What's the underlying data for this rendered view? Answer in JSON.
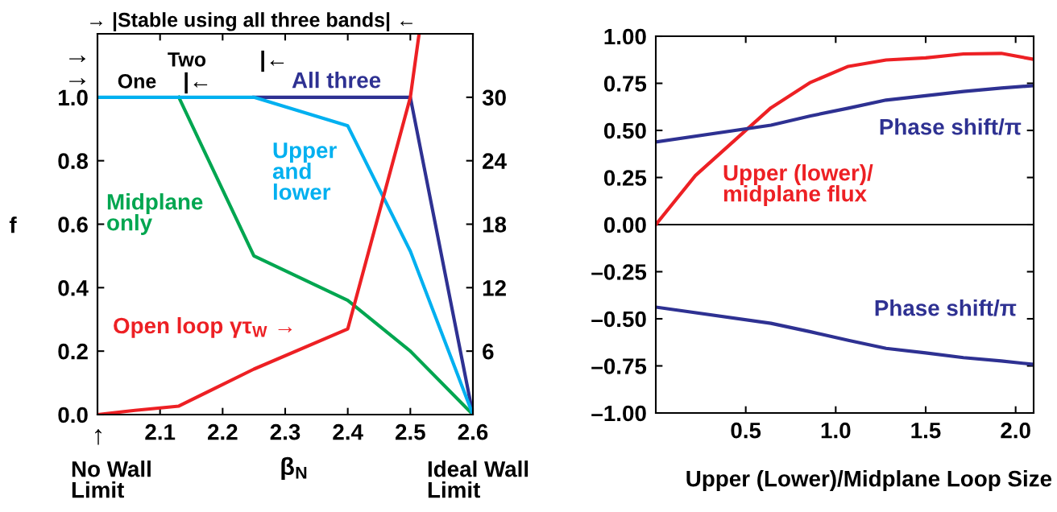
{
  "chart_data": [
    {
      "type": "line",
      "xlabel": "β$_{N}$",
      "ylabel": "f",
      "xlim": [
        2.0,
        2.6
      ],
      "xticks": [
        2.1,
        2.2,
        2.3,
        2.4,
        2.5,
        2.6
      ],
      "ylim": [
        0,
        1.2
      ],
      "yticks": [
        {
          "value": 0,
          "label": "0.0"
        },
        0.2,
        0.4,
        0.6,
        0.8,
        {
          "value": 1,
          "label": "1.0"
        }
      ],
      "y2lim": [
        0,
        36
      ],
      "y2ticks": [
        6,
        12,
        18,
        24,
        30
      ],
      "series": [
        {
          "name": "All three",
          "color": "#2e3192",
          "x": [
            2.25,
            2.5,
            2.6
          ],
          "values": [
            1.0,
            1.0,
            0.0
          ]
        },
        {
          "name": "Midplane\nonly",
          "color": "#00a650",
          "x": [
            2.13,
            2.25,
            2.4,
            2.5,
            2.6
          ],
          "values": [
            1.0,
            0.5,
            0.36,
            0.2,
            0.0
          ]
        },
        {
          "name": "Upper\nand\nlower",
          "color": "#00b0f0",
          "x": [
            2.0,
            2.25,
            2.4,
            2.5,
            2.6
          ],
          "values": [
            1.0,
            1.0,
            0.91,
            0.515,
            0.0
          ]
        },
        {
          "name": "Open loop γτ$_{W}$ →",
          "color": "#ed2024",
          "axis": "y2",
          "x": [
            2.0,
            2.06,
            2.13,
            2.25,
            2.4,
            2.5,
            2.514
          ],
          "values": [
            0,
            0.4,
            0.8,
            4.3,
            8.1,
            30,
            36
          ]
        }
      ],
      "annotations": [
        "→ |Stable using all three bands| ←",
        "→",
        "Two",
        "|←",
        "→",
        "One",
        "|←",
        "↑",
        "No Wall\nLimit",
        "Ideal Wall\nLimit"
      ]
    },
    {
      "type": "line",
      "xlabel": "Upper (Lower)/Midplane Loop Size",
      "xlim": [
        0,
        2.1
      ],
      "xticks": [
        0.5,
        {
          "value": 1,
          "label": "1.0"
        },
        1.5,
        {
          "value": 2,
          "label": "2.0"
        }
      ],
      "ylim": [
        -1,
        1
      ],
      "yticks": [
        {
          "value": -1,
          "label": "–1.00"
        },
        {
          "value": -0.75,
          "label": "–0.75"
        },
        {
          "value": -0.5,
          "label": "–0.50"
        },
        {
          "value": -0.25,
          "label": "–0.25"
        },
        {
          "value": 0,
          "label": "0.00"
        },
        {
          "value": 0.25,
          "label": "0.25"
        },
        {
          "value": 0.5,
          "label": "0.50"
        },
        {
          "value": 0.75,
          "label": "0.75"
        },
        {
          "value": 1,
          "label": "1.00"
        }
      ],
      "ref_lines": [
        {
          "axis": "y",
          "value": 0,
          "color": "#000000"
        }
      ],
      "series": [
        {
          "name": "Upper (lower)/\nmidplane flux",
          "color": "#ed2024",
          "x": [
            0,
            0.22,
            0.64,
            0.86,
            1.07,
            1.28,
            1.5,
            1.71,
            1.92,
            2.09
          ],
          "values": [
            0,
            0.26,
            0.62,
            0.755,
            0.84,
            0.874,
            0.885,
            0.906,
            0.909,
            0.879
          ]
        },
        {
          "name": "Phase shift/π",
          "color": "#2e3192",
          "x": [
            0,
            0.64,
            0.86,
            1.07,
            1.28,
            1.5,
            1.71,
            1.92,
            2.09
          ],
          "values": [
            0.439,
            0.528,
            0.577,
            0.618,
            0.661,
            0.684,
            0.707,
            0.725,
            0.737
          ]
        },
        {
          "name": "Phase shift/π",
          "color": "#2e3192",
          "x": [
            0,
            0.64,
            0.86,
            1.07,
            1.28,
            1.5,
            1.71,
            1.92,
            2.09
          ],
          "values": [
            -0.438,
            -0.524,
            -0.569,
            -0.614,
            -0.657,
            -0.681,
            -0.706,
            -0.724,
            -0.741
          ]
        }
      ]
    }
  ]
}
